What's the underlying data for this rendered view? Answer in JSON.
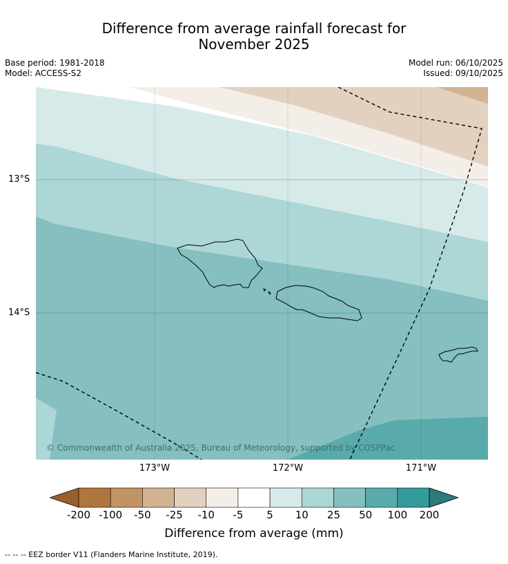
{
  "title_line1": "Difference from average rainfall forecast for",
  "title_line2": "November 2025",
  "meta_left": [
    "Base period: 1981-2018",
    "Model: ACCESS-S2"
  ],
  "meta_right": [
    "Model run: 06/10/2025",
    "Issued: 09/10/2025"
  ],
  "lat_labels": [
    "13°S",
    "14°S"
  ],
  "lon_labels": [
    "173°W",
    "172°W",
    "171°W"
  ],
  "copyright": "© Commonwealth of Australia 2025, Bureau of Meteorology, supported by COSPPac",
  "colorbar": {
    "label": "Difference from average (mm)",
    "ticks": [
      "-200",
      "-100",
      "-50",
      "-25",
      "-10",
      "-5",
      "5",
      "10",
      "25",
      "50",
      "100",
      "200"
    ],
    "colors": [
      "#9a5f2d",
      "#b07640",
      "#c29464",
      "#d4b392",
      "#e3d1c0",
      "#f3eee8",
      "#ffffff",
      "#d6eae9",
      "#add6d6",
      "#85bfbf",
      "#59abab",
      "#339b9b",
      "#2f7a7a"
    ]
  },
  "legend": "--  --  -- EEZ border V11 (Flanders Marine Institute, 2019)."
}
